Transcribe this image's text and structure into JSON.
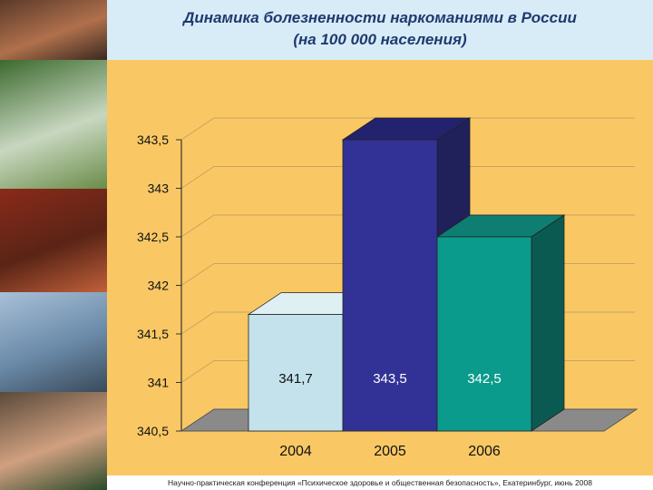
{
  "title_line1": "Динамика болезненности наркоманиями в России",
  "title_line2": "(на 100 000 населения)",
  "footer": "Научно-практическая конференция «Психическое здоровье и общественная безопасность», Екатеринбург, июнь 2008",
  "chart_data": {
    "type": "bar",
    "categories": [
      "2004",
      "2005",
      "2006"
    ],
    "values": [
      341.7,
      343.5,
      342.5
    ],
    "data_labels": [
      "341,7",
      "343,5",
      "342,5"
    ],
    "ylim": [
      340.5,
      343.5
    ],
    "yticks": [
      340.5,
      341,
      341.5,
      342,
      342.5,
      343,
      343.5
    ],
    "ytick_labels": [
      "340,5",
      "341",
      "341,5",
      "342",
      "342,5",
      "343",
      "343,5"
    ],
    "grid": true,
    "three_d": true,
    "colors": [
      "#c4e2ec",
      "#323296",
      "#0b9b8c"
    ],
    "side_colors": [
      "#8aa9b4",
      "#20205a",
      "#0a5a52"
    ],
    "top_colors": [
      "#dff0f5",
      "#22226e",
      "#0e7e72"
    ],
    "plot_background": "#f9c865",
    "floor_color": "#8a8a8a",
    "label_color": "#111111"
  },
  "photos": [
    {
      "name": "crowd-photo",
      "colors": [
        "#5a3a2a",
        "#b0704c",
        "#3a2a20"
      ]
    },
    {
      "name": "children-bicycle-photo",
      "colors": [
        "#3c6a2e",
        "#c8d7c0",
        "#6a8c48"
      ]
    },
    {
      "name": "machinery-painting-photo",
      "colors": [
        "#8a2a1a",
        "#5a2416",
        "#c0603a"
      ]
    },
    {
      "name": "surreal-painting-photo",
      "colors": [
        "#a8c0d8",
        "#6a8aa8",
        "#3a4a5a"
      ]
    },
    {
      "name": "hands-photo",
      "colors": [
        "#5a4a3a",
        "#d0a080",
        "#2a4a2a"
      ]
    }
  ]
}
